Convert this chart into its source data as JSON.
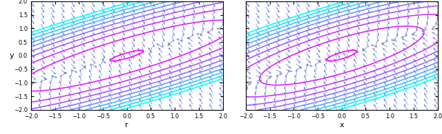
{
  "xlim": [
    -2.0,
    2.0
  ],
  "ylim": [
    -2.0,
    2.0
  ],
  "xticks": [
    -2.0,
    -1.5,
    -1.0,
    -0.5,
    0.0,
    0.5,
    1.0,
    1.5,
    2.0
  ],
  "yticks": [
    -2.0,
    -1.5,
    -1.0,
    -0.5,
    0.0,
    0.5,
    1.0,
    1.5,
    2.0
  ],
  "xlabel_left": "r",
  "xlabel_right": "x",
  "ylabel_left": "y",
  "figsize": [
    6.4,
    1.95
  ],
  "dpi": 100,
  "quiver_color": "#4455cc",
  "contour_cmap": "viridis",
  "n_grid": 20,
  "n_fine": 200,
  "n_contour_levels": 10,
  "background": "white"
}
